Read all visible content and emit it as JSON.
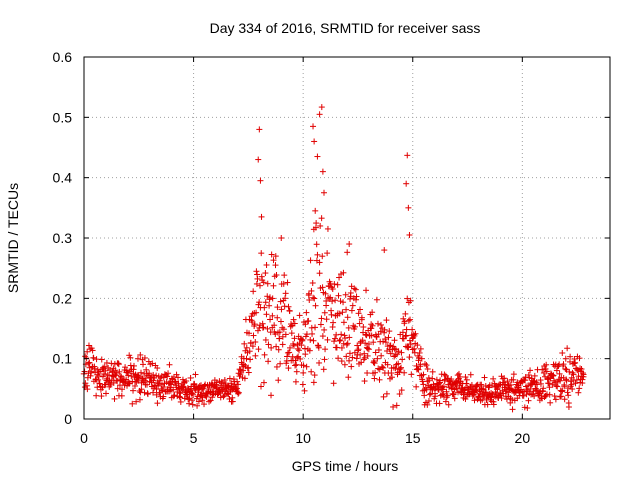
{
  "chart_data": {
    "type": "scatter",
    "title": "Day 334 of 2016, SRMTID for receiver sass",
    "xlabel": "GPS time / hours",
    "ylabel": "SRMTID / TECUs",
    "xlim": [
      0,
      24
    ],
    "ylim": [
      0,
      0.6
    ],
    "xticks": [
      0,
      5,
      10,
      15,
      20
    ],
    "xtick_labels": [
      "0",
      "5",
      "10",
      "15",
      "20"
    ],
    "yticks": [
      0,
      0.1,
      0.2,
      0.3,
      0.4,
      0.5,
      0.6
    ],
    "ytick_labels": [
      "0",
      "0.1",
      "0.2",
      "0.3",
      "0.4",
      "0.5",
      "0.6"
    ],
    "grid": true,
    "marker": "+",
    "color": "#e00000",
    "series": [
      {
        "name": "SRMTID",
        "envelope": {
          "x": [
            0,
            0.4,
            0.8,
            1.5,
            2.5,
            3.5,
            4.5,
            5.5,
            6.5,
            7.0,
            7.4,
            7.8,
            8.1,
            8.5,
            9.0,
            9.5,
            10.0,
            10.3,
            10.6,
            11.0,
            11.5,
            12.0,
            12.5,
            13.0,
            13.5,
            13.9,
            14.4,
            14.8,
            15.1,
            15.5,
            16.0,
            17.0,
            18.0,
            19.0,
            20.0,
            21.0,
            21.8,
            22.4,
            22.8
          ],
          "base": [
            0.075,
            0.09,
            0.07,
            0.065,
            0.07,
            0.06,
            0.05,
            0.045,
            0.05,
            0.055,
            0.1,
            0.15,
            0.16,
            0.17,
            0.18,
            0.14,
            0.12,
            0.16,
            0.22,
            0.2,
            0.17,
            0.16,
            0.14,
            0.12,
            0.1,
            0.11,
            0.1,
            0.15,
            0.12,
            0.06,
            0.05,
            0.05,
            0.045,
            0.045,
            0.05,
            0.06,
            0.065,
            0.09,
            0.07
          ],
          "spread": [
            0.03,
            0.05,
            0.03,
            0.03,
            0.035,
            0.03,
            0.025,
            0.02,
            0.02,
            0.02,
            0.05,
            0.08,
            0.1,
            0.1,
            0.1,
            0.08,
            0.08,
            0.1,
            0.12,
            0.12,
            0.1,
            0.09,
            0.08,
            0.06,
            0.07,
            0.08,
            0.06,
            0.08,
            0.06,
            0.03,
            0.025,
            0.025,
            0.02,
            0.02,
            0.025,
            0.03,
            0.035,
            0.05,
            0.03
          ]
        },
        "peaks": [
          {
            "x": 8.0,
            "y": 0.48
          },
          {
            "x": 7.95,
            "y": 0.43
          },
          {
            "x": 8.05,
            "y": 0.395
          },
          {
            "x": 8.1,
            "y": 0.335
          },
          {
            "x": 10.85,
            "y": 0.517
          },
          {
            "x": 10.75,
            "y": 0.505
          },
          {
            "x": 10.45,
            "y": 0.485
          },
          {
            "x": 10.5,
            "y": 0.46
          },
          {
            "x": 10.65,
            "y": 0.435
          },
          {
            "x": 10.9,
            "y": 0.41
          },
          {
            "x": 10.95,
            "y": 0.375
          },
          {
            "x": 10.55,
            "y": 0.345
          },
          {
            "x": 14.75,
            "y": 0.437
          },
          {
            "x": 14.7,
            "y": 0.39
          },
          {
            "x": 14.8,
            "y": 0.35
          },
          {
            "x": 14.85,
            "y": 0.305
          },
          {
            "x": 9.0,
            "y": 0.3
          },
          {
            "x": 8.75,
            "y": 0.27
          },
          {
            "x": 13.7,
            "y": 0.28
          },
          {
            "x": 12.1,
            "y": 0.29
          }
        ]
      }
    ]
  }
}
